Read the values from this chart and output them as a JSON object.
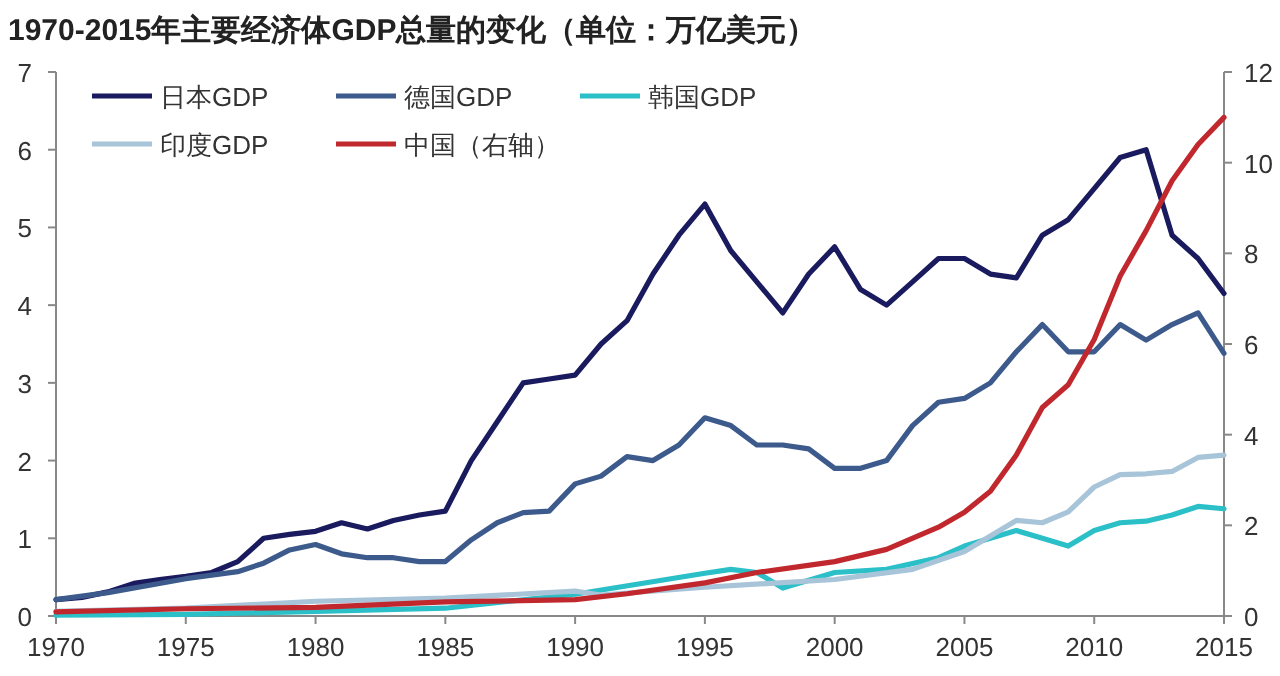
{
  "chart_data": {
    "type": "line",
    "title": "1970-2015年主要经济体GDP总量的变化（单位：万亿美元）",
    "xlim": [
      1970,
      2015
    ],
    "xticks": [
      1970,
      1975,
      1980,
      1985,
      1990,
      1995,
      2000,
      2005,
      2010,
      2015
    ],
    "ylim": [
      0,
      7
    ],
    "yticks": [
      0,
      1,
      2,
      3,
      4,
      5,
      6,
      7
    ],
    "y2lim": [
      0,
      12
    ],
    "y2ticks": [
      0,
      2,
      4,
      6,
      8,
      10,
      12
    ],
    "legend": "top left",
    "grid": false,
    "line_style": "solid",
    "marker": "none",
    "series": [
      {
        "name": "日本GDP",
        "color": "#1a1a5e",
        "x": [
          1970,
          1971,
          1972,
          1973,
          1974,
          1975,
          1976,
          1977,
          1978,
          1979,
          1980,
          1981,
          1982,
          1983,
          1984,
          1985,
          1986,
          1987,
          1988,
          1989,
          1990,
          1991,
          1992,
          1993,
          1994,
          1995,
          1996,
          1997,
          1998,
          1999,
          2000,
          2001,
          2002,
          2003,
          2004,
          2005,
          2006,
          2007,
          2008,
          2009,
          2010,
          2011,
          2012,
          2013,
          2014,
          2015
        ],
        "values": [
          0.21,
          0.24,
          0.31,
          0.42,
          0.47,
          0.51,
          0.56,
          0.7,
          1.0,
          1.05,
          1.09,
          1.2,
          1.12,
          1.23,
          1.3,
          1.35,
          2.0,
          2.5,
          3.0,
          3.05,
          3.1,
          3.5,
          3.8,
          4.4,
          4.9,
          5.3,
          4.7,
          4.3,
          3.9,
          4.4,
          4.75,
          4.2,
          4.0,
          4.3,
          4.6,
          4.6,
          4.4,
          4.35,
          4.9,
          5.1,
          5.5,
          5.9,
          6.0,
          4.9,
          4.6,
          4.15
        ]
      },
      {
        "name": "德国GDP",
        "color": "#3d5a8c",
        "x": [
          1970,
          1972,
          1975,
          1977,
          1978,
          1979,
          1980,
          1981,
          1982,
          1983,
          1984,
          1985,
          1986,
          1987,
          1988,
          1989,
          1990,
          1991,
          1992,
          1993,
          1994,
          1995,
          1996,
          1997,
          1998,
          1999,
          2000,
          2001,
          2002,
          2003,
          2004,
          2005,
          2006,
          2007,
          2008,
          2009,
          2010,
          2011,
          2012,
          2013,
          2014,
          2015
        ],
        "values": [
          0.21,
          0.3,
          0.48,
          0.57,
          0.68,
          0.85,
          0.92,
          0.8,
          0.75,
          0.75,
          0.7,
          0.7,
          0.98,
          1.2,
          1.33,
          1.35,
          1.7,
          1.8,
          2.05,
          2.0,
          2.2,
          2.55,
          2.45,
          2.2,
          2.2,
          2.15,
          1.9,
          1.9,
          2.0,
          2.45,
          2.75,
          2.8,
          3.0,
          3.4,
          3.75,
          3.4,
          3.4,
          3.75,
          3.55,
          3.75,
          3.9,
          3.38
        ]
      },
      {
        "name": "韩国GDP",
        "color": "#2bbfc8",
        "x": [
          1970,
          1975,
          1980,
          1985,
          1990,
          1995,
          1996,
          1997,
          1998,
          1999,
          2000,
          2002,
          2004,
          2005,
          2006,
          2007,
          2008,
          2009,
          2010,
          2011,
          2012,
          2013,
          2014,
          2015
        ],
        "values": [
          0.01,
          0.02,
          0.06,
          0.1,
          0.28,
          0.55,
          0.6,
          0.56,
          0.36,
          0.46,
          0.56,
          0.6,
          0.75,
          0.9,
          1.0,
          1.1,
          1.0,
          0.9,
          1.1,
          1.2,
          1.22,
          1.3,
          1.41,
          1.38
        ]
      },
      {
        "name": "印度GDP",
        "color": "#a8c4d8",
        "x": [
          1970,
          1975,
          1980,
          1985,
          1990,
          1991,
          1995,
          2000,
          2003,
          2005,
          2007,
          2008,
          2009,
          2010,
          2011,
          2012,
          2013,
          2014,
          2015
        ],
        "values": [
          0.06,
          0.1,
          0.19,
          0.23,
          0.32,
          0.27,
          0.37,
          0.47,
          0.6,
          0.83,
          1.23,
          1.2,
          1.34,
          1.66,
          1.82,
          1.83,
          1.86,
          2.04,
          2.07
        ]
      },
      {
        "name": "中国（右轴）",
        "color": "#c0282d",
        "axis": "y2",
        "x": [
          1970,
          1975,
          1980,
          1985,
          1990,
          1992,
          1995,
          1997,
          2000,
          2002,
          2004,
          2005,
          2006,
          2007,
          2008,
          2009,
          2010,
          2011,
          2012,
          2013,
          2014,
          2015
        ],
        "values": [
          0.09,
          0.16,
          0.19,
          0.31,
          0.36,
          0.49,
          0.73,
          0.96,
          1.2,
          1.47,
          1.96,
          2.29,
          2.75,
          3.55,
          4.6,
          5.1,
          6.1,
          7.5,
          8.5,
          9.6,
          10.4,
          11.0
        ]
      }
    ]
  }
}
